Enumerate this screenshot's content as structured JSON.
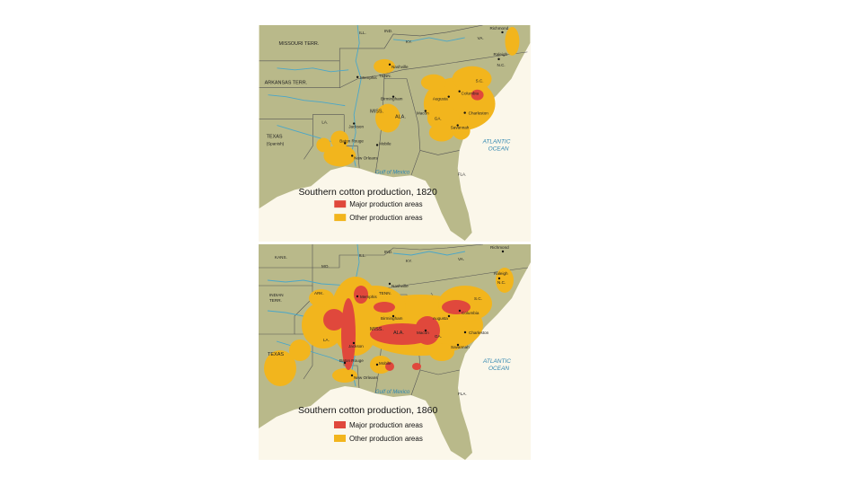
{
  "maps": [
    {
      "title": "Southern cotton production, 1820",
      "legend": {
        "major": "Major production areas",
        "other": "Other production areas"
      },
      "labels": {
        "missouri": "MISSOURI TERR.",
        "ill": "ILL.",
        "ind": "IND.",
        "ky": "KY.",
        "va": "VA.",
        "arkansas": "ARKANSAS TERR.",
        "tenn": "TENN.",
        "nc": "N.C.",
        "sc": "S.C.",
        "miss": "MISS.",
        "ala": "ALA.",
        "ga": "GA.",
        "la": "LA.",
        "texas": "TEXAS",
        "texas_sub": "(Spanish)",
        "fla": "FLA."
      },
      "cities": {
        "richmond": "Richmond",
        "raleigh": "Raleigh",
        "nashville": "Nashville",
        "memphis": "Memphis",
        "birmingham": "Birmingham",
        "augusta": "Augusta",
        "columbia": "Columbia",
        "macon": "Macon",
        "charleston": "Charleston",
        "savannah": "Savannah",
        "jackson": "Jackson",
        "baton_rouge": "Baton Rouge",
        "mobile": "Mobile",
        "new_orleans": "New Orleans"
      },
      "water": {
        "atlantic_1": "ATLANTIC",
        "atlantic_2": "OCEAN",
        "gulf": "Gulf of Mexico"
      }
    },
    {
      "title": "Southern cotton production, 1860",
      "legend": {
        "major": "Major production areas",
        "other": "Other production areas"
      },
      "labels": {
        "kans": "KANS.",
        "mo": "MO.",
        "ill": "ILL.",
        "ind": "IND.",
        "ky": "KY.",
        "va": "VA.",
        "ark": "ARK.",
        "tenn": "TENN.",
        "nc": "N.C.",
        "sc": "S.C.",
        "indian": "INDIAN",
        "indian_2": "TERR.",
        "miss": "MISS.",
        "ala": "ALA.",
        "ga": "GA.",
        "la": "LA.",
        "texas": "TEXAS",
        "fla": "FLA."
      },
      "cities": {
        "richmond": "Richmond",
        "raleigh": "Raleigh",
        "nashville": "Nashville",
        "memphis": "Memphis",
        "birmingham": "Birmingham",
        "augusta": "Augusta",
        "columbia": "Columbia",
        "macon": "Macon",
        "charleston": "Charleston",
        "savannah": "Savannah",
        "jackson": "Jackson",
        "baton_rouge": "Baton Rouge",
        "mobile": "Mobile",
        "new_orleans": "New Orleans"
      },
      "water": {
        "atlantic_1": "ATLANTIC",
        "atlantic_2": "OCEAN",
        "gulf": "Gulf of Mexico"
      }
    }
  ],
  "colors": {
    "land": "#b9b98a",
    "water": "#fbf7ea",
    "major": "#e0483c",
    "other": "#f2b51d",
    "river": "#4aa7c9"
  }
}
